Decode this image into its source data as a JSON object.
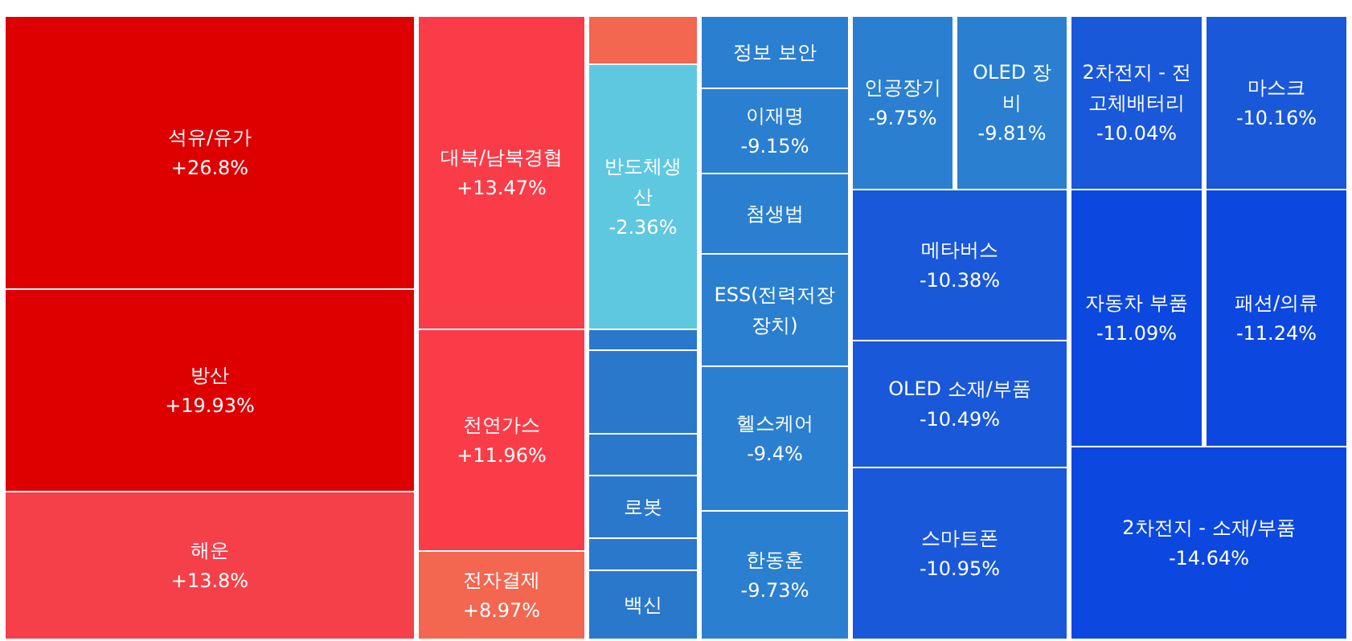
{
  "chart_data": {
    "type": "other",
    "categories": [
      "석유/유가",
      "방산",
      "해운",
      "대북/남북경협",
      "천연가스",
      "전자결제",
      null,
      "반도체생산",
      null,
      null,
      null,
      "로봇",
      null,
      "백신",
      "정보 보안",
      "이재명",
      "첨생법",
      "ESS(전력저장장치)",
      "헬스케어",
      "한동훈",
      "인공장기",
      "OLED 장비",
      "메타버스",
      "OLED 소재/부품",
      "스마트폰",
      "2차전지 - 전고체배터리",
      "마스크",
      "자동차 부품",
      "패션/의류",
      "2차전지 - 소재/부품"
    ],
    "values": [
      26.8,
      19.93,
      13.8,
      13.47,
      11.96,
      8.97,
      null,
      -2.36,
      null,
      null,
      null,
      null,
      null,
      null,
      null,
      -9.15,
      null,
      null,
      -9.4,
      -9.73,
      -9.75,
      -9.81,
      -10.38,
      -10.49,
      -10.95,
      -10.04,
      -10.16,
      -11.09,
      -11.24,
      -14.64
    ],
    "value_labels": [
      "+26.8%",
      "+19.93%",
      "+13.8%",
      "+13.47%",
      "+11.96%",
      "+8.97%",
      null,
      "-2.36%",
      null,
      null,
      null,
      null,
      null,
      null,
      null,
      "-9.15%",
      null,
      null,
      "-9.4%",
      "-9.73%",
      "-9.75%",
      "-9.81%",
      "-10.38%",
      "-10.49%",
      "-10.95%",
      "-10.04%",
      "-10.16%",
      "-11.09%",
      "-11.24%",
      "-14.64%"
    ],
    "colors": [
      "#de0000",
      "#de0000",
      "#f5404a",
      "#fa3c48",
      "#fa3c48",
      "#f36650",
      "#f36650",
      "#5ec8e0",
      "#2a78cc",
      "#2a78cc",
      "#2a78cc",
      "#2a78cc",
      "#2a78cc",
      "#2a78cc",
      "#2a7fd0",
      "#2a7fd0",
      "#2a7fd0",
      "#2a7fd0",
      "#2a7fd0",
      "#2a7fd0",
      "#2a7fd0",
      "#2a7fd0",
      "#1a58da",
      "#1a58da",
      "#1a58da",
      "#1a58da",
      "#1a58da",
      "#0c48e0",
      "#0c48e0",
      "#0c48e0"
    ]
  }
}
